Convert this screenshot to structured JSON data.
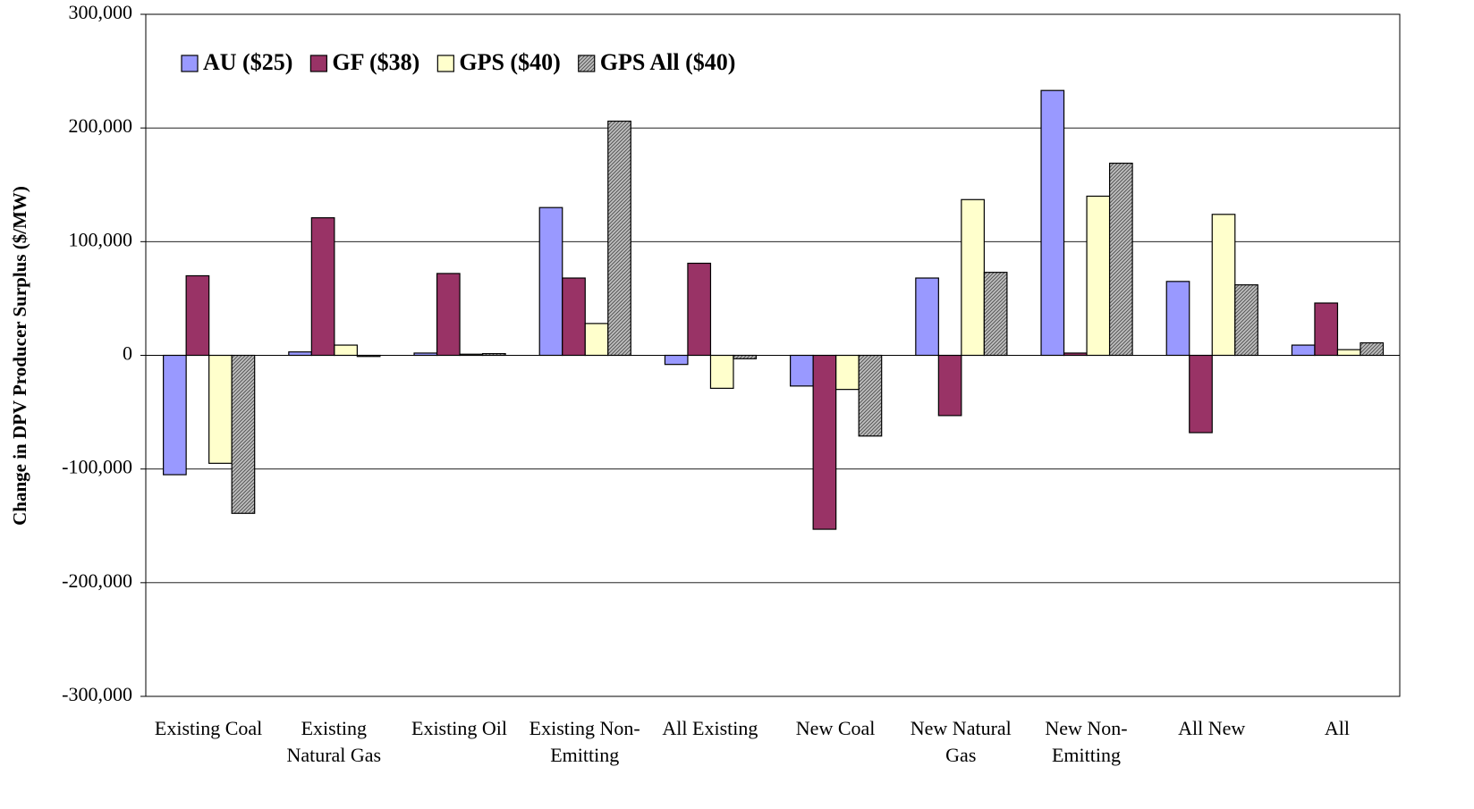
{
  "chart_data": {
    "type": "bar",
    "y_label": "Change in DPV Producer Surplus ($/MW)",
    "categories": [
      "Existing Coal",
      "Existing Natural Gas",
      "Existing Oil",
      "Existing Non-Emitting",
      "All Existing",
      "New Coal",
      "New Natural Gas",
      "New Non-Emitting",
      "All New",
      "All"
    ],
    "series": [
      {
        "name": "AU ($25)",
        "color": "#9999ff",
        "values": [
          -105000,
          3000,
          2000,
          130000,
          -8000,
          -27000,
          68000,
          233000,
          65000,
          9000
        ]
      },
      {
        "name": "GF ($38)",
        "color": "#993366",
        "values": [
          70000,
          121000,
          72000,
          68000,
          81000,
          -153000,
          -53000,
          2000,
          -68000,
          46000
        ]
      },
      {
        "name": "GPS ($40)",
        "color": "#ffffcc",
        "values": [
          -95000,
          9000,
          1000,
          28000,
          -29000,
          -30000,
          137000,
          140000,
          124000,
          5000
        ]
      },
      {
        "name": "GPS All ($40)",
        "color": "#c0c0c0",
        "hatched": true,
        "values": [
          -139000,
          -1000,
          1500,
          206000,
          -3000,
          -71000,
          73000,
          169000,
          62000,
          11000
        ]
      }
    ],
    "ylim": [
      -300000,
      300000
    ],
    "yticks": [
      {
        "value": -300000,
        "label": "-300,000"
      },
      {
        "value": -200000,
        "label": "-200,000"
      },
      {
        "value": -100000,
        "label": "-100,000"
      },
      0,
      {
        "value": 100000,
        "label": "100,000"
      },
      {
        "value": 200000,
        "label": "200,000"
      },
      {
        "value": 300000,
        "label": "300,000"
      }
    ],
    "grid": true,
    "legend": "top-left"
  }
}
